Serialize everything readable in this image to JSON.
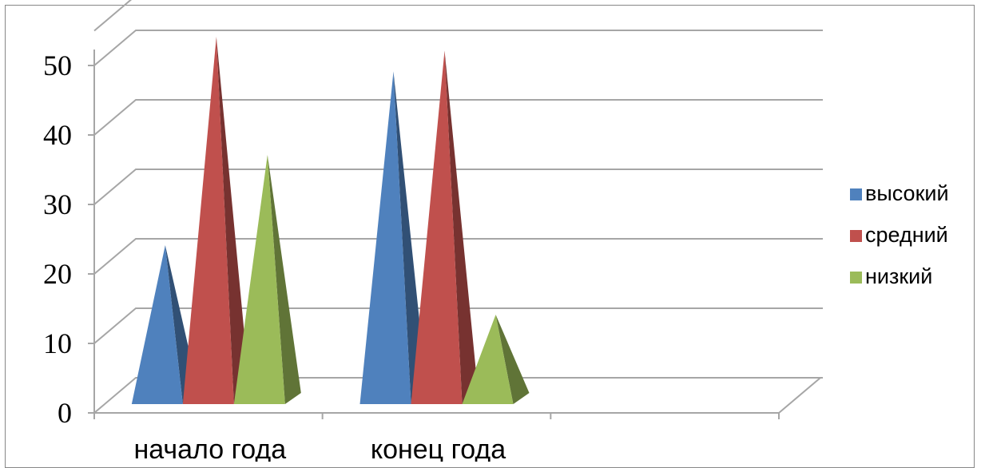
{
  "chart_data": {
    "type": "bar",
    "shape": "pyramid-3d",
    "categories": [
      "начало года",
      "конец года",
      ""
    ],
    "series": [
      {
        "name": "высокий",
        "values": [
          20,
          45,
          null
        ],
        "color": "#4f81bd"
      },
      {
        "name": "средний",
        "values": [
          50,
          48,
          null
        ],
        "color": "#c0504d"
      },
      {
        "name": "низкий",
        "values": [
          33,
          10,
          null
        ],
        "color": "#9bbb59"
      }
    ],
    "yticks": [
      0,
      10,
      20,
      30,
      40,
      50
    ],
    "ylim": [
      0,
      50
    ],
    "grid": true,
    "legend": "right",
    "title": "",
    "xlabel": "",
    "ylabel": ""
  }
}
